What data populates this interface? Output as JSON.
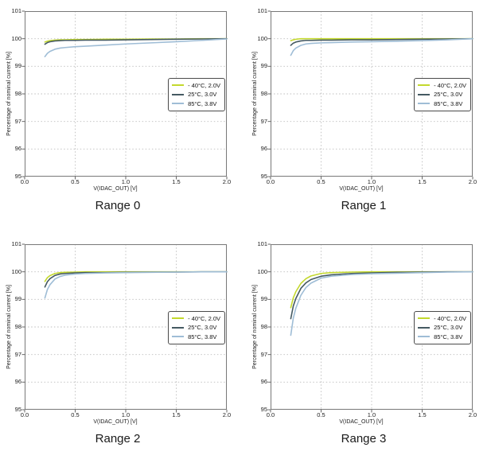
{
  "page": {
    "background": "#ffffff",
    "text_color": "#111111",
    "grid_color": "#bdbdbd",
    "axis_color": "#787878"
  },
  "chart_data": [
    {
      "type": "line",
      "title": "Range 0",
      "xlabel": "V(IDAC_OUT) [V]",
      "ylabel": "Percentage of nominal current [%]",
      "xlim": [
        0,
        2
      ],
      "ylim": [
        95,
        101
      ],
      "grid": true,
      "legend_position": "right-center",
      "xticks": {
        "values": [
          0,
          0.5,
          1,
          1.5,
          2
        ],
        "labels": [
          "0.0",
          "0.5",
          "1.0",
          "1.5",
          "2.0"
        ]
      },
      "yticks": {
        "values": [
          95,
          96,
          97,
          98,
          99,
          100,
          101
        ],
        "labels": [
          "95",
          "96",
          "97",
          "98",
          "99",
          "100",
          "101"
        ]
      },
      "grid_x": [
        0.5,
        1,
        1.5
      ],
      "grid_y": [
        96,
        97,
        98,
        99,
        100
      ],
      "x": [
        0.2,
        0.225,
        0.25,
        0.3,
        0.35,
        0.4,
        0.5,
        0.6,
        0.8,
        1.0,
        1.25,
        1.5,
        1.75,
        2.0
      ],
      "series": [
        {
          "name": "- 40°C, 2.0V",
          "color": "#c3d82d",
          "y": [
            99.88,
            99.91,
            99.93,
            99.95,
            99.96,
            99.96,
            99.97,
            99.97,
            99.98,
            99.98,
            99.99,
            99.99,
            100.0,
            100.0
          ]
        },
        {
          "name": "25°C, 3.0V",
          "color": "#455a62",
          "y": [
            99.8,
            99.86,
            99.89,
            99.92,
            99.93,
            99.94,
            99.94,
            99.95,
            99.95,
            99.96,
            99.97,
            99.98,
            99.99,
            100.0
          ]
        },
        {
          "name": "85°C, 3.8V",
          "color": "#9fbdd6",
          "y": [
            99.35,
            99.47,
            99.54,
            99.62,
            99.66,
            99.68,
            99.71,
            99.73,
            99.77,
            99.81,
            99.85,
            99.89,
            99.94,
            99.99
          ]
        }
      ]
    },
    {
      "type": "line",
      "title": "Range 1",
      "xlabel": "V(IDAC_OUT) [V]",
      "ylabel": "Percentage of nominal current [%]",
      "xlim": [
        0,
        2
      ],
      "ylim": [
        95,
        101
      ],
      "grid": true,
      "legend_position": "right-center",
      "xticks": {
        "values": [
          0,
          0.5,
          1,
          1.5,
          2
        ],
        "labels": [
          "0.0",
          "0.5",
          "1.0",
          "1.5",
          "2.0"
        ]
      },
      "yticks": {
        "values": [
          95,
          96,
          97,
          98,
          99,
          100,
          101
        ],
        "labels": [
          "95",
          "96",
          "97",
          "98",
          "99",
          "100",
          "101"
        ]
      },
      "grid_x": [
        0.5,
        1,
        1.5
      ],
      "grid_y": [
        96,
        97,
        98,
        99,
        100
      ],
      "x": [
        0.2,
        0.225,
        0.25,
        0.3,
        0.35,
        0.4,
        0.5,
        0.6,
        0.8,
        1.0,
        1.25,
        1.5,
        1.75,
        2.0
      ],
      "series": [
        {
          "name": "- 40°C, 2.0V",
          "color": "#c3d82d",
          "y": [
            99.93,
            99.96,
            99.98,
            100.0,
            100.0,
            100.0,
            100.0,
            100.0,
            100.0,
            100.0,
            100.0,
            100.0,
            100.0,
            100.0
          ]
        },
        {
          "name": "25°C, 3.0V",
          "color": "#455a62",
          "y": [
            99.76,
            99.84,
            99.88,
            99.92,
            99.94,
            99.94,
            99.95,
            99.95,
            99.96,
            99.96,
            99.97,
            99.98,
            99.99,
            100.0
          ]
        },
        {
          "name": "85°C, 3.8V",
          "color": "#9fbdd6",
          "y": [
            99.4,
            99.57,
            99.66,
            99.76,
            99.81,
            99.83,
            99.85,
            99.86,
            99.88,
            99.89,
            99.91,
            99.93,
            99.96,
            100.0
          ]
        }
      ]
    },
    {
      "type": "line",
      "title": "Range 2",
      "xlabel": "V(IDAC_OUT) [V]",
      "ylabel": "Percentage of nominal current [%]",
      "xlim": [
        0,
        2
      ],
      "ylim": [
        95,
        101
      ],
      "grid": true,
      "legend_position": "right-center",
      "xticks": {
        "values": [
          0,
          0.5,
          1,
          1.5,
          2
        ],
        "labels": [
          "0.0",
          "0.5",
          "1.0",
          "1.5",
          "2.0"
        ]
      },
      "yticks": {
        "values": [
          95,
          96,
          97,
          98,
          99,
          100,
          101
        ],
        "labels": [
          "95",
          "96",
          "97",
          "98",
          "99",
          "100",
          "101"
        ]
      },
      "grid_x": [
        0.5,
        1,
        1.5
      ],
      "grid_y": [
        96,
        97,
        98,
        99,
        100
      ],
      "x": [
        0.2,
        0.225,
        0.25,
        0.3,
        0.35,
        0.4,
        0.5,
        0.6,
        0.8,
        1.0,
        1.25,
        1.5,
        1.75,
        2.0
      ],
      "series": [
        {
          "name": "- 40°C, 2.0V",
          "color": "#c3d82d",
          "y": [
            99.65,
            99.79,
            99.86,
            99.94,
            99.97,
            99.98,
            99.99,
            100.0,
            100.0,
            100.0,
            100.0,
            100.0,
            100.0,
            100.0
          ]
        },
        {
          "name": "25°C, 3.0V",
          "color": "#455a62",
          "y": [
            99.45,
            99.64,
            99.75,
            99.87,
            99.92,
            99.94,
            99.96,
            99.97,
            99.97,
            99.98,
            99.99,
            99.99,
            100.0,
            100.0
          ]
        },
        {
          "name": "85°C, 3.8V",
          "color": "#9fbdd6",
          "y": [
            99.05,
            99.36,
            99.53,
            99.74,
            99.83,
            99.88,
            99.92,
            99.94,
            99.96,
            99.97,
            99.98,
            99.99,
            100.0,
            100.0
          ]
        }
      ]
    },
    {
      "type": "line",
      "title": "Range 3",
      "xlabel": "V(IDAC_OUT) [V]",
      "ylabel": "Percentage of nominal current [%]",
      "xlim": [
        0,
        2
      ],
      "ylim": [
        95,
        101
      ],
      "grid": true,
      "legend_position": "right-center",
      "xticks": {
        "values": [
          0,
          0.5,
          1,
          1.5,
          2
        ],
        "labels": [
          "0.0",
          "0.5",
          "1.0",
          "1.5",
          "2.0"
        ]
      },
      "yticks": {
        "values": [
          95,
          96,
          97,
          98,
          99,
          100,
          101
        ],
        "labels": [
          "95",
          "96",
          "97",
          "98",
          "99",
          "100",
          "101"
        ]
      },
      "grid_x": [
        0.5,
        1,
        1.5
      ],
      "grid_y": [
        96,
        97,
        98,
        99,
        100
      ],
      "x": [
        0.2,
        0.225,
        0.25,
        0.3,
        0.35,
        0.4,
        0.5,
        0.6,
        0.8,
        1.0,
        1.25,
        1.5,
        1.75,
        2.0
      ],
      "series": [
        {
          "name": "- 40°C, 2.0V",
          "color": "#c3d82d",
          "y": [
            98.7,
            99.06,
            99.28,
            99.58,
            99.75,
            99.85,
            99.94,
            99.97,
            99.99,
            100.0,
            100.0,
            100.0,
            100.0,
            100.0
          ]
        },
        {
          "name": "25°C, 3.0V",
          "color": "#455a62",
          "y": [
            98.3,
            98.76,
            99.03,
            99.4,
            99.6,
            99.72,
            99.84,
            99.89,
            99.94,
            99.96,
            99.98,
            99.99,
            100.0,
            100.0
          ]
        },
        {
          "name": "85°C, 3.8V",
          "color": "#9fbdd6",
          "y": [
            97.7,
            98.32,
            98.68,
            99.15,
            99.43,
            99.59,
            99.77,
            99.84,
            99.9,
            99.93,
            99.95,
            99.97,
            99.99,
            100.0
          ]
        }
      ]
    }
  ]
}
